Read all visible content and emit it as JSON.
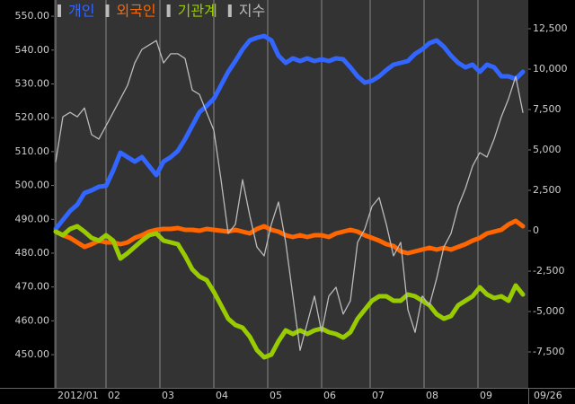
{
  "chart_data": {
    "type": "line",
    "xlim": [
      0,
      65
    ],
    "xticks": [
      {
        "value": 0,
        "label": "2012/01"
      },
      {
        "value": 7,
        "label": "02"
      },
      {
        "value": 14.5,
        "label": "03"
      },
      {
        "value": 22,
        "label": "04"
      },
      {
        "value": 29.5,
        "label": "05"
      },
      {
        "value": 37,
        "label": "06"
      },
      {
        "value": 43.75,
        "label": "07"
      },
      {
        "value": 51.25,
        "label": "08"
      },
      {
        "value": 58.75,
        "label": "09"
      }
    ],
    "last_date": "09/26",
    "xgrid": true,
    "ylim": [
      440.2,
      554.8
    ],
    "yticks": [
      {
        "value": 450,
        "label": "450.00"
      },
      {
        "value": 460,
        "label": "460.00"
      },
      {
        "value": 470,
        "label": "470.00"
      },
      {
        "value": 480,
        "label": "480.00"
      },
      {
        "value": 490,
        "label": "490.00"
      },
      {
        "value": 500,
        "label": "500.00"
      },
      {
        "value": 510,
        "label": "510.00"
      },
      {
        "value": 520,
        "label": "520.00"
      },
      {
        "value": 530,
        "label": "530.00"
      },
      {
        "value": 540,
        "label": "540.00"
      },
      {
        "value": 550,
        "label": "550.00"
      }
    ],
    "y2lim": [
      -9722,
      14278
    ],
    "y2ticks": [
      {
        "value": -7500,
        "label": "-7,500"
      },
      {
        "value": -5000,
        "label": "-5,000"
      },
      {
        "value": -2500,
        "label": "-2,500"
      },
      0,
      {
        "value": 2500,
        "label": "2,500"
      },
      {
        "value": 5000,
        "label": "5,000"
      },
      {
        "value": 7500,
        "label": "7,500"
      },
      {
        "value": 10000,
        "label": "10,000"
      },
      {
        "value": 12500,
        "label": "12,500"
      }
    ],
    "series": [
      {
        "name": "개인",
        "color": "#3366ff",
        "axis": "y2",
        "width": 5,
        "values": [
          111,
          667,
          1222,
          1611,
          2333,
          2500,
          2722,
          2778,
          3722,
          4833,
          4556,
          4278,
          4556,
          4000,
          3444,
          4278,
          4556,
          4944,
          5667,
          6500,
          7333,
          7722,
          8167,
          9000,
          9833,
          10500,
          11222,
          11778,
          11944,
          12056,
          11778,
          10833,
          10389,
          10667,
          10500,
          10667,
          10500,
          10611,
          10500,
          10667,
          10611,
          10111,
          9556,
          9167,
          9278,
          9556,
          9944,
          10278,
          10389,
          10500,
          10944,
          11222,
          11611,
          11778,
          11389,
          10833,
          10389,
          10111,
          10278,
          9833,
          10278,
          10111,
          9556,
          9556,
          9389,
          9833
        ]
      },
      {
        "name": "외국인",
        "color": "#ff6600",
        "axis": "y2",
        "width": 5,
        "values": [
          -56,
          -278,
          -444,
          -722,
          -1000,
          -833,
          -611,
          -722,
          -722,
          -833,
          -722,
          -444,
          -278,
          -56,
          56,
          111,
          111,
          167,
          56,
          56,
          0,
          111,
          56,
          0,
          -56,
          56,
          -56,
          -167,
          111,
          278,
          56,
          -56,
          -278,
          -389,
          -278,
          -389,
          -278,
          -278,
          -389,
          -167,
          -56,
          56,
          -56,
          -278,
          -444,
          -611,
          -833,
          -944,
          -1278,
          -1389,
          -1278,
          -1167,
          -1056,
          -1167,
          -1056,
          -1167,
          -1000,
          -833,
          -611,
          -444,
          -167,
          -56,
          56,
          389,
          611,
          278
        ]
      },
      {
        "name": "기관계",
        "color": "#99cc00",
        "axis": "y2",
        "width": 5,
        "values": [
          -56,
          -278,
          111,
          278,
          -56,
          -444,
          -611,
          -278,
          -611,
          -1722,
          -1389,
          -1000,
          -611,
          -278,
          -167,
          -611,
          -722,
          -833,
          -1556,
          -2389,
          -2833,
          -3056,
          -3778,
          -4611,
          -5444,
          -5833,
          -6000,
          -6556,
          -7389,
          -7833,
          -7667,
          -6833,
          -6167,
          -6389,
          -6167,
          -6389,
          -6167,
          -6056,
          -6278,
          -6389,
          -6611,
          -6278,
          -5444,
          -4889,
          -4333,
          -4056,
          -4056,
          -4333,
          -4333,
          -3944,
          -4056,
          -4333,
          -4611,
          -5167,
          -5444,
          -5278,
          -4611,
          -4333,
          -4056,
          -3500,
          -3944,
          -4167,
          -4056,
          -4333,
          -3389,
          -3944
        ]
      },
      {
        "name": "지수",
        "color": "#bbbbbb",
        "axis": "y",
        "width": 1.3,
        "values": [
          507.0,
          520.3,
          521.6,
          520.3,
          522.9,
          515.0,
          513.7,
          517.6,
          521.6,
          525.6,
          529.6,
          536.2,
          540.2,
          541.5,
          542.8,
          536.2,
          538.9,
          538.9,
          537.5,
          528.2,
          526.9,
          521.6,
          516.3,
          501.7,
          485.8,
          488.5,
          501.7,
          491.1,
          481.8,
          479.2,
          488.5,
          495.1,
          483.2,
          467.3,
          451.3,
          459.3,
          467.3,
          456.6,
          467.3,
          469.9,
          462.0,
          465.9,
          483.2,
          487.1,
          493.8,
          496.4,
          488.5,
          479.2,
          483.2,
          463.3,
          456.6,
          467.3,
          464.6,
          472.5,
          481.8,
          485.8,
          493.8,
          499.1,
          505.7,
          509.7,
          508.4,
          513.7,
          520.3,
          525.6,
          532.2,
          521.6
        ]
      }
    ]
  }
}
